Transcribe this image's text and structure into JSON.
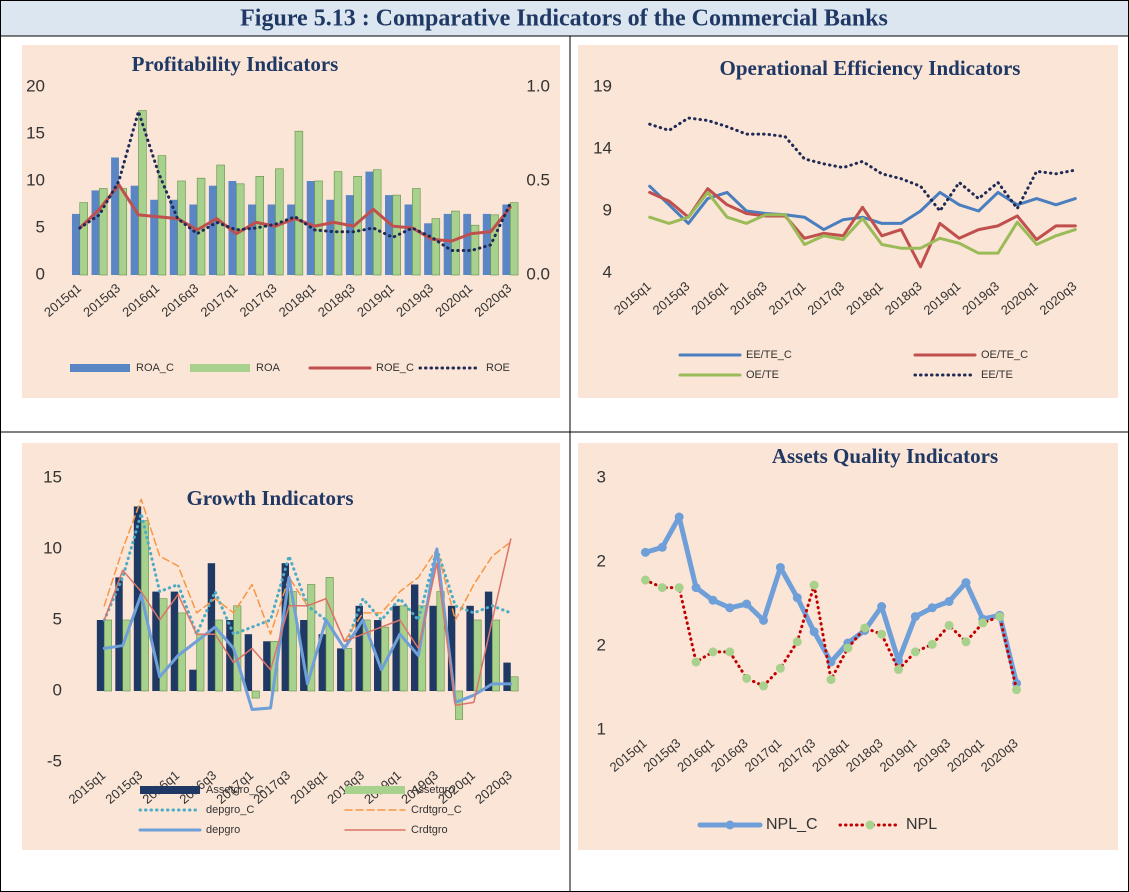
{
  "title": "Figure 5.13 : Comparative Indicators of the Commercial Banks",
  "chart_data": [
    {
      "type": "combo",
      "title": "Profitability Indicators",
      "background": "#fbe5d6",
      "categories": [
        "2015q1",
        null,
        "2015q3",
        null,
        "2016q1",
        null,
        "2016q3",
        null,
        "2017q1",
        null,
        "2017q3",
        null,
        "2018q1",
        null,
        "2018q3",
        null,
        "2019q1",
        null,
        "2019q3",
        null,
        "2020q1",
        null,
        "2020q3"
      ],
      "ylim": [
        0,
        20
      ],
      "yticks": [
        0,
        5,
        10,
        15,
        20
      ],
      "y2lim": [
        0,
        1
      ],
      "y2ticks": [
        {
          "value": 0,
          "label": "0.0"
        },
        {
          "value": 0.5,
          "label": "0.5"
        },
        {
          "value": 1,
          "label": "1.0"
        }
      ],
      "series": [
        {
          "name": "ROA_C",
          "kind": "bar",
          "color": "#5b86c5",
          "values": [
            6.5,
            9,
            12.5,
            9.5,
            8,
            8,
            7.5,
            9.5,
            10,
            7.5,
            7.5,
            7.5,
            10,
            8,
            8.5,
            11,
            8.5,
            7.5,
            5.5,
            6.5,
            6.5,
            6.5,
            7.5
          ]
        },
        {
          "name": "ROA",
          "kind": "bar",
          "color": "#a9d18e",
          "values": [
            7.7,
            9.2,
            9.2,
            17.5,
            12.7,
            10,
            10.3,
            11.7,
            9.7,
            10.5,
            11.3,
            15.3,
            10,
            11,
            10.5,
            11.2,
            8.5,
            9.2,
            6,
            6.8,
            5.3,
            6.4,
            7.7
          ]
        },
        {
          "name": "ROE_C",
          "kind": "line",
          "axis": "y2",
          "style": "solid",
          "weight": "normal",
          "color": "#c0504d",
          "values": [
            0.25,
            0.35,
            0.48,
            0.32,
            0.31,
            0.3,
            0.24,
            0.3,
            0.22,
            0.28,
            0.26,
            0.3,
            0.26,
            0.28,
            0.26,
            0.35,
            0.26,
            0.25,
            0.19,
            0.18,
            0.22,
            0.23,
            0.36
          ]
        },
        {
          "name": "ROE",
          "kind": "line",
          "axis": "y2",
          "style": "dotted",
          "weight": "normal",
          "color": "#1f2a55",
          "values": [
            0.25,
            0.32,
            0.5,
            0.87,
            0.55,
            0.3,
            0.22,
            0.28,
            0.24,
            0.25,
            0.27,
            0.31,
            0.24,
            0.23,
            0.23,
            0.25,
            0.2,
            0.25,
            0.2,
            0.13,
            0.13,
            0.16,
            0.38
          ]
        }
      ]
    },
    {
      "type": "line",
      "title": "Operational Efficiency Indicators",
      "background": "#fbe5d6",
      "categories": [
        "2015q1",
        null,
        "2015q3",
        null,
        "2016q1",
        null,
        "2016q3",
        null,
        "2017q1",
        null,
        "2017q3",
        null,
        "2018q1",
        null,
        "2018q3",
        null,
        "2019q1",
        null,
        "2019q3",
        null,
        "2020q1",
        null,
        "2020q3"
      ],
      "ylim": [
        4,
        19
      ],
      "yticks": [
        4,
        9,
        14,
        19
      ],
      "series": [
        {
          "name": "EE/TE_C",
          "kind": "line",
          "style": "solid",
          "weight": "normal",
          "color": "#4a7ebf",
          "values": [
            11,
            9.5,
            8,
            10,
            10.5,
            9,
            8.8,
            8.7,
            8.5,
            7.5,
            8.3,
            8.5,
            8,
            8,
            9,
            10.5,
            9.5,
            9,
            10.5,
            9.5,
            10,
            9.5,
            10
          ]
        },
        {
          "name": "OE/TE_C",
          "kind": "line",
          "style": "solid",
          "weight": "normal",
          "color": "#c0504d",
          "values": [
            10.5,
            9.8,
            8.5,
            10.8,
            9.5,
            8.8,
            8.6,
            8.6,
            6.8,
            7.2,
            7,
            9.3,
            7,
            7.5,
            4.5,
            8,
            6.8,
            7.5,
            7.8,
            8.6,
            6.7,
            7.8,
            7.8
          ]
        },
        {
          "name": "OE/TE",
          "kind": "line",
          "style": "solid",
          "weight": "normal",
          "color": "#9bbb59",
          "values": [
            8.5,
            8,
            8.5,
            10.5,
            8.5,
            8,
            8.7,
            8.7,
            6.3,
            7,
            6.7,
            8.4,
            6.3,
            6,
            6,
            6.8,
            6.4,
            5.6,
            5.6,
            8.1,
            6.3,
            7,
            7.5
          ]
        },
        {
          "name": "EE/TE",
          "kind": "line",
          "style": "dotted",
          "weight": "normal",
          "color": "#1f2a55",
          "values": [
            16,
            15.5,
            16.5,
            16.3,
            15.8,
            15.2,
            15.2,
            15,
            13.2,
            12.8,
            12.5,
            13,
            12,
            11.6,
            11,
            9,
            11.3,
            10,
            11.3,
            9.2,
            12.2,
            12,
            12.3
          ]
        }
      ]
    },
    {
      "type": "combo",
      "title": "Growth Indicators",
      "background": "#fbe5d6",
      "categories": [
        "2015q1",
        null,
        "2015q3",
        null,
        "2016q1",
        null,
        "2016q3",
        null,
        "2017q1",
        null,
        "2017q3",
        null,
        "2018q1",
        null,
        "2018q3",
        null,
        "2019q1",
        null,
        "2019q3",
        null,
        "2020q1",
        null,
        "2020q3"
      ],
      "ylim": [
        -5,
        15
      ],
      "yticks": [
        -5,
        0,
        5,
        10,
        15
      ],
      "series": [
        {
          "name": "Assetgro_C",
          "kind": "bar",
          "color": "#1f3864",
          "values": [
            5,
            8,
            13,
            7,
            7,
            1.5,
            9,
            5,
            4,
            3.5,
            9,
            5,
            4,
            3,
            6,
            5,
            6,
            7.5,
            6,
            6,
            6,
            7,
            2
          ]
        },
        {
          "name": "Assetgro",
          "kind": "bar",
          "color": "#a9d18e",
          "values": [
            5,
            5,
            12,
            6.5,
            5.5,
            4,
            5,
            6,
            -0.5,
            3.5,
            7,
            7.5,
            8,
            3,
            5,
            4.5,
            6,
            6,
            7,
            -2,
            5,
            5,
            1
          ]
        },
        {
          "name": "depgro_C",
          "kind": "line",
          "style": "dotted",
          "weight": "normal",
          "color": "#4bacc6",
          "values": [
            5,
            8,
            12.5,
            7,
            7.5,
            4,
            7,
            4,
            4.5,
            5,
            9.5,
            6,
            5,
            3,
            6.5,
            5,
            6.5,
            5,
            10,
            6,
            5.5,
            6,
            5.5
          ]
        },
        {
          "name": "Crdtgro_C",
          "kind": "line",
          "style": "dashed",
          "weight": "thin",
          "color": "#f79646",
          "values": [
            6,
            10,
            13.5,
            9.5,
            8.8,
            5.5,
            6.5,
            5.5,
            7.5,
            4,
            8,
            6,
            6.5,
            3.5,
            5.5,
            5.5,
            7,
            8,
            10,
            5,
            7.5,
            9.5,
            10.5
          ]
        },
        {
          "name": "depgro",
          "kind": "line",
          "style": "solid",
          "weight": "normal",
          "color": "#6f9fd8",
          "values": [
            3,
            3.2,
            6.8,
            1,
            2.5,
            3.5,
            4.5,
            3,
            -1.3,
            -1.2,
            8,
            0.5,
            5,
            3,
            5,
            1.5,
            4,
            2.5,
            10,
            -0.8,
            -0.3,
            0.5,
            0.5
          ]
        },
        {
          "name": "Crdtgro",
          "kind": "line",
          "style": "solid",
          "weight": "thin",
          "color": "#d9746a",
          "values": [
            5,
            8.5,
            7,
            5,
            6.8,
            4,
            4,
            2,
            3,
            1.5,
            6,
            6,
            6.5,
            3.5,
            4,
            4.5,
            5,
            3,
            9,
            -1,
            -0.8,
            5,
            10.7
          ]
        }
      ]
    },
    {
      "type": "line",
      "title": "Assets Quality Indicators",
      "background": "#fbe5d6",
      "categories": [
        "2015q1",
        null,
        "2015q3",
        null,
        "2016q1",
        null,
        "2016q3",
        null,
        "2017q1",
        null,
        "2017q3",
        null,
        "2018q1",
        null,
        "2018q3",
        null,
        "2019q1",
        null,
        "2019q3",
        null,
        "2020q1",
        null,
        "2020q3"
      ],
      "ylim": [
        1,
        3
      ],
      "yticks": [
        1,
        {
          "value": 1.6667,
          "label": "2"
        },
        {
          "value": 2.3333,
          "label": "2"
        },
        3
      ],
      "series": [
        {
          "name": "NPL_C",
          "kind": "line",
          "style": "solid",
          "weight": "thick",
          "marker": true,
          "color": "#6f9fd8",
          "marker_color": "#6f9fd8",
          "values": [
            2.41,
            2.45,
            2.69,
            2.13,
            2.03,
            1.97,
            2.0,
            1.87,
            2.29,
            2.05,
            1.78,
            1.54,
            1.69,
            1.79,
            1.98,
            1.55,
            1.9,
            1.97,
            2.02,
            2.17,
            1.88,
            1.91,
            1.37
          ]
        },
        {
          "name": "NPL",
          "kind": "line",
          "style": "dotted",
          "weight": "normal",
          "marker": true,
          "color": "#c00000",
          "marker_color": "#a9d18e",
          "values": [
            2.19,
            2.13,
            2.13,
            1.54,
            1.62,
            1.62,
            1.41,
            1.35,
            1.49,
            1.7,
            2.15,
            1.4,
            1.65,
            1.81,
            1.76,
            1.48,
            1.62,
            1.68,
            1.83,
            1.7,
            1.85,
            1.9,
            1.32
          ]
        }
      ]
    }
  ]
}
